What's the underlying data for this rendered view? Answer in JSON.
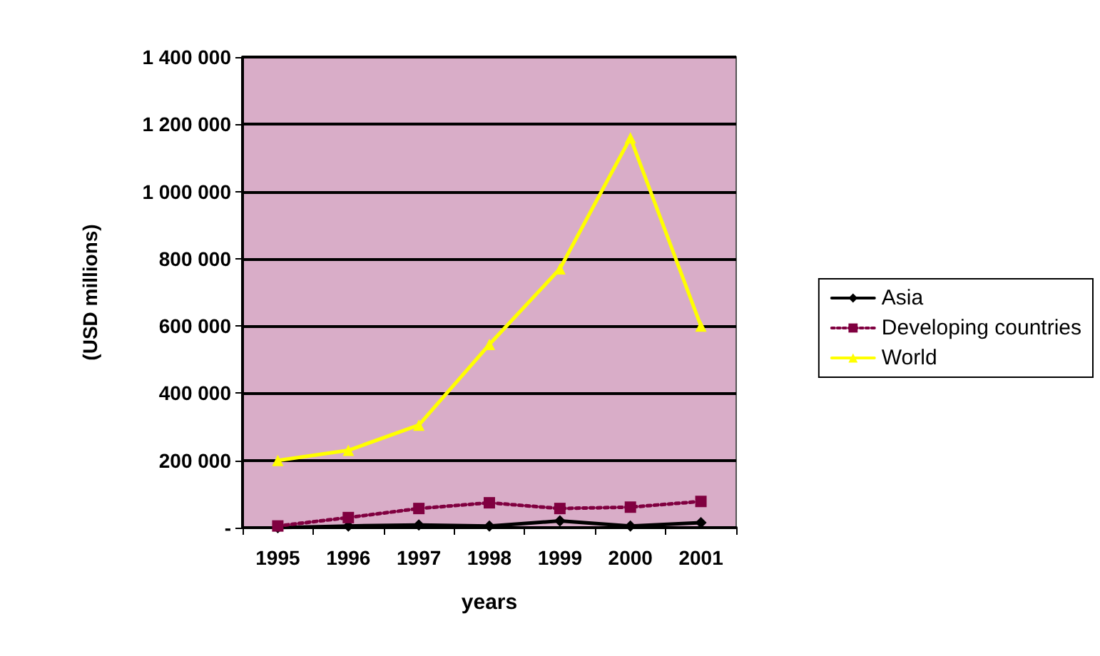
{
  "chart_data": {
    "type": "line",
    "ylabel": "(USD millions)",
    "xlabel": "years",
    "categories": [
      "1995",
      "1996",
      "1997",
      "1998",
      "1999",
      "2000",
      "2001"
    ],
    "series": [
      {
        "name": "Asia",
        "color": "#000000",
        "marker": "diamond",
        "line_style": "solid",
        "values": [
          0,
          5000,
          8000,
          5000,
          20000,
          5000,
          15000
        ]
      },
      {
        "name": "Developing countries",
        "color": "#800040",
        "marker": "square",
        "line_style": "dotted",
        "values": [
          5000,
          30000,
          57000,
          74000,
          57000,
          61000,
          78000
        ]
      },
      {
        "name": "World",
        "color": "#ffff00",
        "marker": "triangle",
        "line_style": "solid",
        "values": [
          200000,
          230000,
          305000,
          545000,
          770000,
          1160000,
          600000
        ]
      }
    ],
    "ylim": [
      0,
      1400000
    ],
    "yticks": [
      {
        "value": 0,
        "label": "-"
      },
      {
        "value": 200000,
        "label": "200 000"
      },
      {
        "value": 400000,
        "label": "400 000"
      },
      {
        "value": 600000,
        "label": "600 000"
      },
      {
        "value": 800000,
        "label": "800 000"
      },
      {
        "value": 1000000,
        "label": "1 000 000"
      },
      {
        "value": 1200000,
        "label": "1 200 000"
      },
      {
        "value": 1400000,
        "label": "1 400 000"
      }
    ],
    "grid": "y",
    "legend": "right"
  }
}
